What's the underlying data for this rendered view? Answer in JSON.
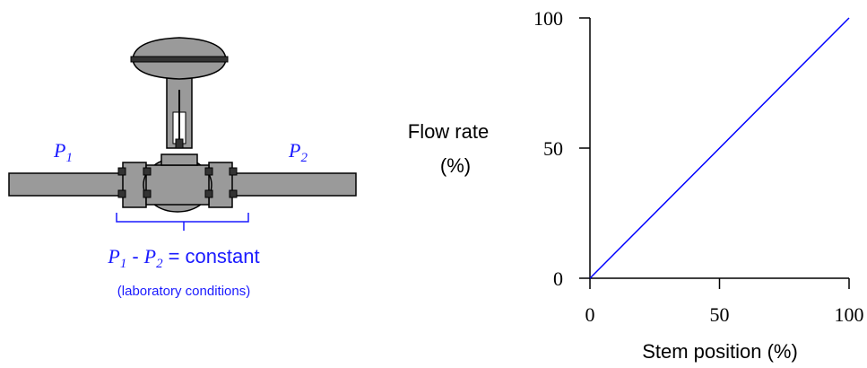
{
  "diagram": {
    "upstream_label": {
      "symbol": "P",
      "subscript": "1"
    },
    "downstream_label": {
      "symbol": "P",
      "subscript": "2"
    },
    "equation": {
      "left": {
        "symbol": "P",
        "subscript": "1"
      },
      "operator": "-",
      "right": {
        "symbol": "P",
        "subscript": "2"
      },
      "equals": "=",
      "text": "constant"
    },
    "note": "(laboratory conditions)"
  },
  "chart_data": {
    "type": "line",
    "x": [
      0,
      100
    ],
    "values": [
      0,
      100
    ],
    "color": "#0000ff",
    "xlim": [
      0,
      100
    ],
    "ylim": [
      0,
      100
    ],
    "xticks": [
      0,
      50,
      100
    ],
    "yticks": [
      0,
      50,
      100
    ],
    "xlabel": "Stem position (%)",
    "ylabel": [
      "Flow rate",
      "(%)"
    ]
  }
}
